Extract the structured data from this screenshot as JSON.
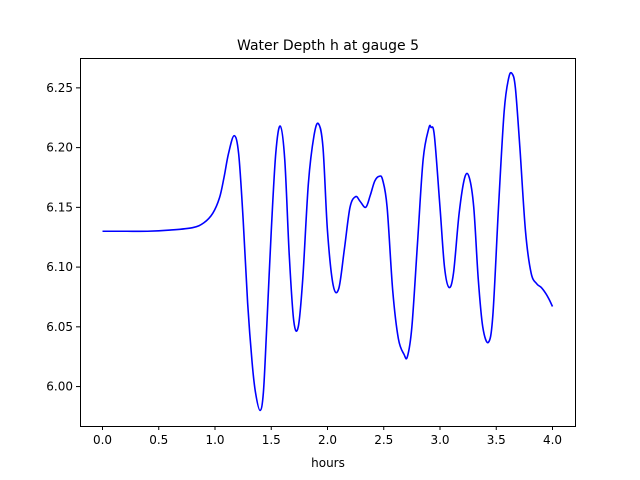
{
  "chart_data": {
    "type": "line",
    "title": "Water Depth h at gauge 5",
    "xlabel": "hours",
    "ylabel": "",
    "xlim": [
      -0.2,
      4.2
    ],
    "ylim": [
      5.967,
      6.275
    ],
    "xticks": [
      0.0,
      0.5,
      1.0,
      1.5,
      2.0,
      2.5,
      3.0,
      3.5,
      4.0
    ],
    "xtick_labels": [
      "0.0",
      "0.5",
      "1.0",
      "1.5",
      "2.0",
      "2.5",
      "3.0",
      "3.5",
      "4.0"
    ],
    "yticks": [
      6.0,
      6.05,
      6.1,
      6.15,
      6.2,
      6.25
    ],
    "ytick_labels": [
      "6.00",
      "6.05",
      "6.10",
      "6.15",
      "6.20",
      "6.25"
    ],
    "grid": false,
    "series": [
      {
        "color": "#0000ff",
        "x": [
          0.0,
          0.2,
          0.4,
          0.6,
          0.8,
          0.9,
          0.98,
          1.04,
          1.08,
          1.12,
          1.17,
          1.21,
          1.25,
          1.29,
          1.33,
          1.36,
          1.4,
          1.43,
          1.46,
          1.5,
          1.54,
          1.58,
          1.62,
          1.66,
          1.7,
          1.74,
          1.78,
          1.83,
          1.88,
          1.92,
          1.96,
          2.0,
          2.05,
          2.1,
          2.15,
          2.2,
          2.25,
          2.29,
          2.34,
          2.38,
          2.42,
          2.46,
          2.49,
          2.53,
          2.58,
          2.63,
          2.68,
          2.71,
          2.75,
          2.8,
          2.85,
          2.9,
          2.92,
          2.95,
          3.0,
          3.04,
          3.08,
          3.12,
          3.17,
          3.22,
          3.26,
          3.3,
          3.34,
          3.38,
          3.43,
          3.47,
          3.52,
          3.57,
          3.61,
          3.64,
          3.67,
          3.71,
          3.76,
          3.81,
          3.86,
          3.9,
          3.94,
          3.97,
          4.0
        ],
        "values": [
          6.13,
          6.13,
          6.13,
          6.131,
          6.133,
          6.137,
          6.145,
          6.158,
          6.175,
          6.195,
          6.21,
          6.195,
          6.14,
          6.07,
          6.02,
          5.995,
          5.98,
          5.995,
          6.05,
          6.13,
          6.195,
          6.218,
          6.19,
          6.11,
          6.055,
          6.05,
          6.09,
          6.17,
          6.21,
          6.22,
          6.2,
          6.13,
          6.085,
          6.082,
          6.115,
          6.15,
          6.159,
          6.155,
          6.15,
          6.16,
          6.172,
          6.176,
          6.173,
          6.15,
          6.08,
          6.04,
          6.027,
          6.025,
          6.05,
          6.12,
          6.19,
          6.216,
          6.217,
          6.21,
          6.15,
          6.1,
          6.083,
          6.095,
          6.145,
          6.175,
          6.175,
          6.15,
          6.09,
          6.05,
          6.037,
          6.06,
          6.15,
          6.23,
          6.258,
          6.262,
          6.25,
          6.2,
          6.13,
          6.095,
          6.086,
          6.083,
          6.078,
          6.073,
          6.067
        ]
      }
    ]
  }
}
